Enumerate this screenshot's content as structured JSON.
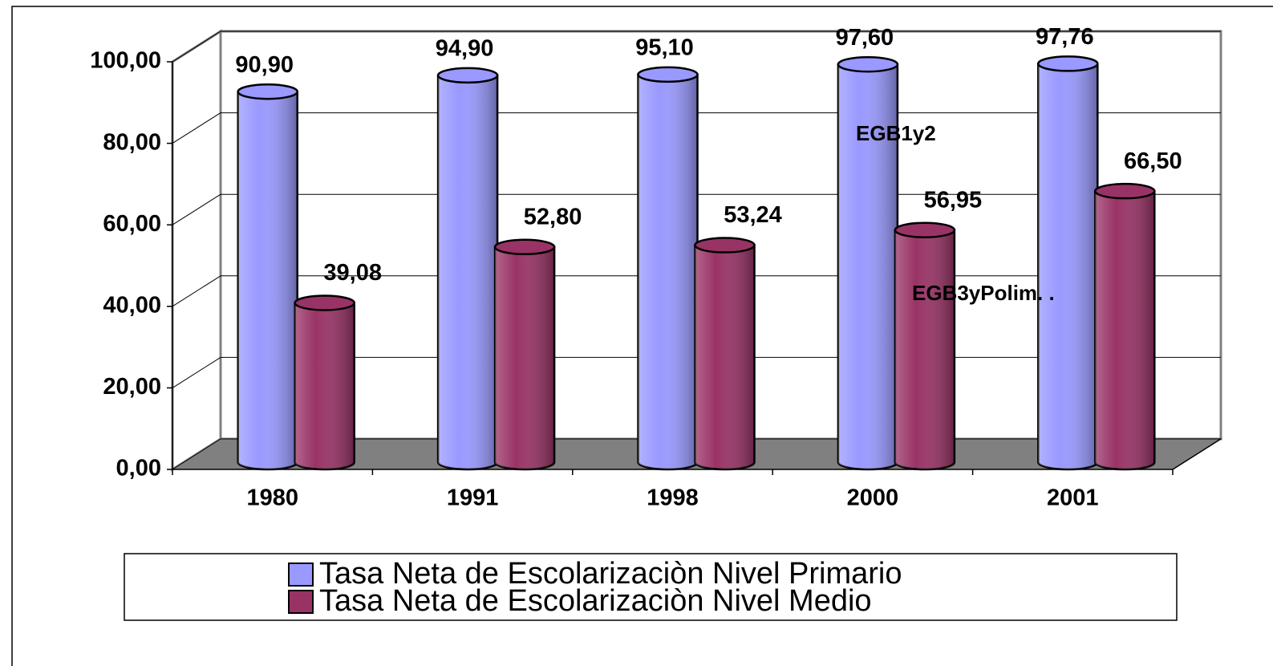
{
  "chart_data": {
    "type": "bar",
    "categories": [
      "1980",
      "1991",
      "1998",
      "2000",
      "2001"
    ],
    "series": [
      {
        "name": "Tasa Neta de Escolarizaciòn Nivel Primario",
        "color": "#9999ff",
        "values": [
          90.9,
          94.9,
          95.1,
          97.6,
          97.76
        ],
        "value_labels": [
          "90,90",
          "94,90",
          "95,10",
          "97,60",
          "97,76"
        ]
      },
      {
        "name": "Tasa Neta de Escolarizaciòn Nivel Medio",
        "color": "#993366",
        "values": [
          39.08,
          52.8,
          53.24,
          56.95,
          66.5
        ],
        "value_labels": [
          "39,08",
          "52,80",
          "53,24",
          "56,95",
          "66,50"
        ]
      }
    ],
    "ylim": [
      0,
      100
    ],
    "yticks": [
      {
        "value": 0,
        "label": "0,00"
      },
      {
        "value": 20,
        "label": "20,00"
      },
      {
        "value": 40,
        "label": "40,00"
      },
      {
        "value": 60,
        "label": "60,00"
      },
      {
        "value": 80,
        "label": "80,00"
      },
      {
        "value": 100,
        "label": "100,00"
      }
    ],
    "grid": true,
    "annotations": [
      "EGB1y2",
      "EGB3yPolim. ."
    ]
  }
}
